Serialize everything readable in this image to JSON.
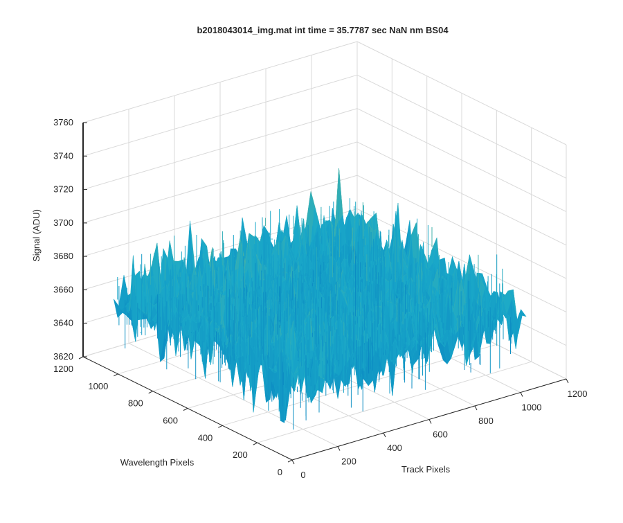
{
  "chart_data": {
    "type": "surface",
    "title": "b2018043014_img.mat int time = 35.7787 sec  NaN nm BS04",
    "xlabel": "Track Pixels",
    "ylabel": "Wavelength Pixels",
    "zlabel": "Signal (ADU)",
    "xlim": [
      0,
      1200
    ],
    "ylim": [
      0,
      1200
    ],
    "zlim": [
      3620,
      3760
    ],
    "x_ticks": [
      "0",
      "200",
      "400",
      "600",
      "800",
      "1000",
      "1200"
    ],
    "y_ticks": [
      "0",
      "200",
      "400",
      "600",
      "800",
      "1000",
      "1200"
    ],
    "z_ticks": [
      "3620",
      "3640",
      "3660",
      "3680",
      "3700",
      "3720",
      "3740",
      "3760"
    ],
    "data_extent": {
      "x": [
        0,
        1024
      ],
      "y": [
        0,
        1024
      ]
    },
    "signal_mean": 3665,
    "signal_range": [
      3625,
      3722
    ],
    "grid": true,
    "colors": {
      "low": "#0072bd",
      "mid": "#1aa9c9",
      "high": "#a6c45b"
    }
  }
}
